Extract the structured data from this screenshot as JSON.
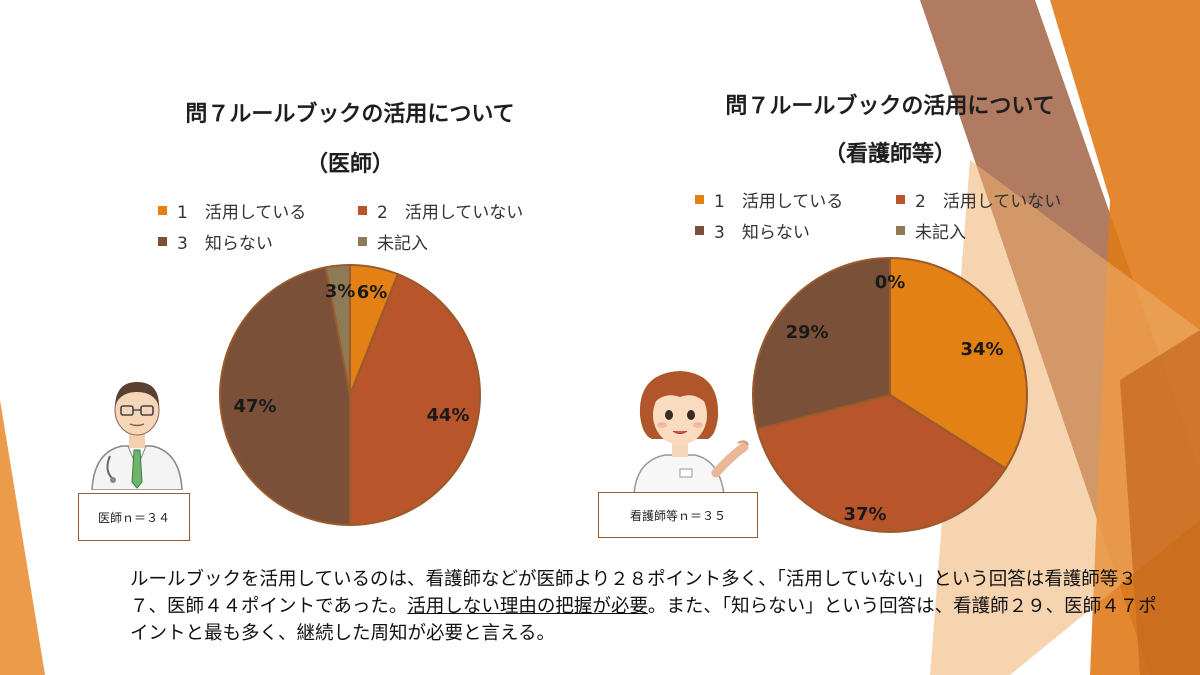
{
  "colors": {
    "orange": "#E38114",
    "rust": "#B9552A",
    "brown": "#7B5038",
    "tan": "#8E7B55",
    "border": "#9a5b2c"
  },
  "chart_data": [
    {
      "type": "pie",
      "title": "問７ルールブックの活用について",
      "subtitle": "（医師）",
      "categories": [
        "1　活用している",
        "2　活用していない",
        "3　知らない",
        "未記入"
      ],
      "values": [
        6,
        44,
        47,
        3
      ],
      "labels": [
        "6%",
        "44%",
        "47%",
        "3%"
      ],
      "legend_position": "top"
    },
    {
      "type": "pie",
      "title": "問７ルールブックの活用について",
      "subtitle": "（看護師等）",
      "categories": [
        "1　活用している",
        "2　活用していない",
        "3　知らない",
        "未記入"
      ],
      "values": [
        34,
        37,
        29,
        0
      ],
      "labels": [
        "34%",
        "37%",
        "29%",
        "0%"
      ],
      "legend_position": "top"
    }
  ],
  "doctor_n": "医師ｎ＝３４",
  "nurse_n": "看護師等ｎ＝３５",
  "caption": {
    "part1": "ルールブックを活用しているのは、看護師などが医師より２８ポイント多く、「活用していない」という回答は看護師等３７、医師４４ポイントであった。",
    "underlined": "活用しない理由の把握が必要",
    "part2": "。また、「知らない」という回答は、看護師２９、医師４７ポイントと最も多く、継続した周知が必要と言える。"
  }
}
